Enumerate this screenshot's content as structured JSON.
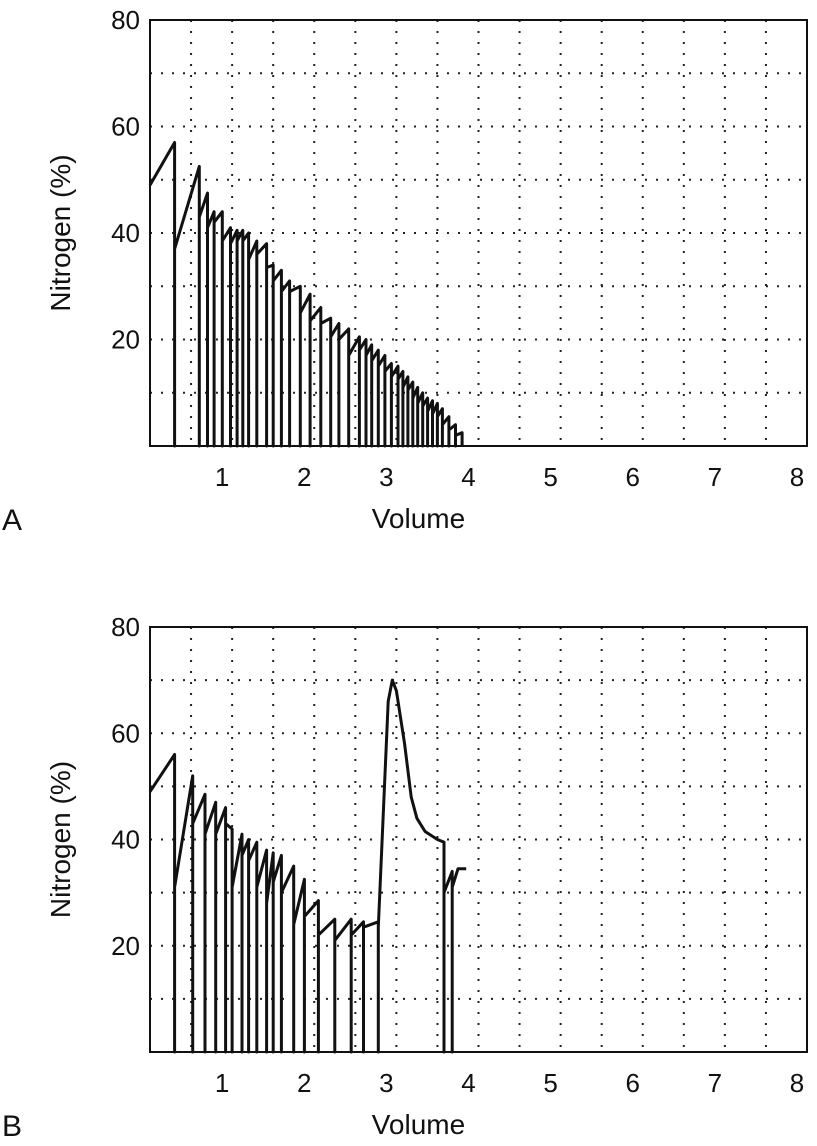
{
  "chart_data": [
    {
      "panel": "A",
      "type": "line",
      "xlabel": "Volume",
      "ylabel": "Nitrogen (%)",
      "xlim": [
        0,
        8
      ],
      "ylim": [
        0,
        80
      ],
      "x_ticks": [
        1,
        2,
        3,
        4,
        5,
        6,
        7,
        8
      ],
      "y_ticks": [
        20,
        40,
        60,
        80
      ],
      "grid": "dotted",
      "series": [
        {
          "points": [
            [
              0,
              49
            ],
            [
              0.3,
              57
            ],
            [
              0.3,
              0
            ],
            [
              0.3,
              37
            ],
            [
              0.6,
              52.5
            ],
            [
              0.6,
              0
            ],
            [
              0.6,
              43
            ],
            [
              0.7,
              47.5
            ],
            [
              0.7,
              0
            ],
            [
              0.7,
              41
            ],
            [
              0.78,
              44
            ],
            [
              0.78,
              0
            ],
            [
              0.78,
              42
            ],
            [
              0.88,
              44
            ],
            [
              0.88,
              0
            ],
            [
              0.88,
              38.5
            ],
            [
              0.98,
              41
            ],
            [
              0.98,
              0
            ],
            [
              0.98,
              38
            ],
            [
              1.06,
              40.5
            ],
            [
              1.06,
              0
            ],
            [
              1.06,
              38.5
            ],
            [
              1.13,
              40.5
            ],
            [
              1.13,
              0
            ],
            [
              1.13,
              38.5
            ],
            [
              1.2,
              40
            ],
            [
              1.2,
              0
            ],
            [
              1.2,
              35
            ],
            [
              1.3,
              38.5
            ],
            [
              1.3,
              0
            ],
            [
              1.3,
              36
            ],
            [
              1.42,
              38
            ],
            [
              1.42,
              0
            ],
            [
              1.42,
              33.5
            ],
            [
              1.5,
              34
            ],
            [
              1.5,
              0
            ],
            [
              1.5,
              31
            ],
            [
              1.6,
              33
            ],
            [
              1.6,
              0
            ],
            [
              1.6,
              29
            ],
            [
              1.7,
              31
            ],
            [
              1.7,
              0
            ],
            [
              1.7,
              29
            ],
            [
              1.83,
              30
            ],
            [
              1.83,
              0
            ],
            [
              1.83,
              25
            ],
            [
              1.95,
              28.5
            ],
            [
              1.95,
              0
            ],
            [
              1.95,
              23.5
            ],
            [
              2.08,
              26
            ],
            [
              2.08,
              0
            ],
            [
              2.08,
              23
            ],
            [
              2.2,
              24
            ],
            [
              2.2,
              0
            ],
            [
              2.2,
              20.5
            ],
            [
              2.3,
              23
            ],
            [
              2.3,
              0
            ],
            [
              2.3,
              20
            ],
            [
              2.42,
              22
            ],
            [
              2.42,
              0
            ],
            [
              2.42,
              17
            ],
            [
              2.55,
              20.5
            ],
            [
              2.55,
              0
            ],
            [
              2.55,
              18
            ],
            [
              2.63,
              20
            ],
            [
              2.63,
              0
            ],
            [
              2.63,
              17
            ],
            [
              2.7,
              19
            ],
            [
              2.7,
              0
            ],
            [
              2.7,
              16
            ],
            [
              2.78,
              18
            ],
            [
              2.78,
              0
            ],
            [
              2.78,
              15
            ],
            [
              2.86,
              17
            ],
            [
              2.86,
              0
            ],
            [
              2.86,
              14
            ],
            [
              2.94,
              15.5
            ],
            [
              2.94,
              0
            ],
            [
              2.94,
              13
            ],
            [
              3.02,
              15
            ],
            [
              3.02,
              0
            ],
            [
              3.02,
              12.5
            ],
            [
              3.08,
              14
            ],
            [
              3.08,
              0
            ],
            [
              3.08,
              11
            ],
            [
              3.14,
              13
            ],
            [
              3.14,
              0
            ],
            [
              3.14,
              10.5
            ],
            [
              3.2,
              12
            ],
            [
              3.2,
              0
            ],
            [
              3.2,
              9
            ],
            [
              3.26,
              11
            ],
            [
              3.26,
              0
            ],
            [
              3.26,
              8
            ],
            [
              3.32,
              10
            ],
            [
              3.32,
              0
            ],
            [
              3.32,
              7.5
            ],
            [
              3.38,
              9
            ],
            [
              3.38,
              0
            ],
            [
              3.38,
              6.5
            ],
            [
              3.44,
              8.5
            ],
            [
              3.44,
              0
            ],
            [
              3.44,
              6
            ],
            [
              3.5,
              8
            ],
            [
              3.5,
              0
            ],
            [
              3.5,
              5.5
            ],
            [
              3.56,
              7
            ],
            [
              3.56,
              0
            ],
            [
              3.56,
              4
            ],
            [
              3.64,
              5.5
            ],
            [
              3.64,
              0
            ],
            [
              3.64,
              3
            ],
            [
              3.72,
              4
            ],
            [
              3.72,
              0
            ],
            [
              3.72,
              2
            ],
            [
              3.8,
              2.5
            ],
            [
              3.8,
              0
            ]
          ]
        }
      ]
    },
    {
      "panel": "B",
      "type": "line",
      "xlabel": "Volume",
      "ylabel": "Nitrogen (%)",
      "xlim": [
        0,
        8
      ],
      "ylim": [
        0,
        80
      ],
      "x_ticks": [
        1,
        2,
        3,
        4,
        5,
        6,
        7,
        8
      ],
      "y_ticks": [
        20,
        40,
        60,
        80
      ],
      "grid": "dotted",
      "series": [
        {
          "points": [
            [
              0,
              49
            ],
            [
              0.3,
              56
            ],
            [
              0.3,
              0
            ],
            [
              0.3,
              31
            ],
            [
              0.52,
              52
            ],
            [
              0.52,
              0
            ],
            [
              0.52,
              43
            ],
            [
              0.67,
              48.5
            ],
            [
              0.67,
              0
            ],
            [
              0.67,
              41
            ],
            [
              0.8,
              47
            ],
            [
              0.8,
              0
            ],
            [
              0.8,
              41
            ],
            [
              0.92,
              46
            ],
            [
              0.92,
              0
            ],
            [
              0.92,
              43
            ],
            [
              1.0,
              42
            ],
            [
              1.0,
              0
            ],
            [
              1.0,
              31
            ],
            [
              1.12,
              41
            ],
            [
              1.12,
              0
            ],
            [
              1.12,
              37
            ],
            [
              1.2,
              40
            ],
            [
              1.2,
              0
            ],
            [
              1.2,
              36
            ],
            [
              1.3,
              39.5
            ],
            [
              1.3,
              0
            ],
            [
              1.3,
              31
            ],
            [
              1.42,
              38
            ],
            [
              1.42,
              0
            ],
            [
              1.42,
              28
            ],
            [
              1.5,
              37.5
            ],
            [
              1.5,
              0
            ],
            [
              1.5,
              32
            ],
            [
              1.6,
              37
            ],
            [
              1.6,
              0
            ],
            [
              1.6,
              30
            ],
            [
              1.75,
              35
            ],
            [
              1.75,
              0
            ],
            [
              1.75,
              24
            ],
            [
              1.88,
              32.5
            ],
            [
              1.88,
              0
            ],
            [
              1.88,
              25.5
            ],
            [
              2.05,
              28.5
            ],
            [
              2.05,
              0
            ],
            [
              2.05,
              22
            ],
            [
              2.25,
              25
            ],
            [
              2.25,
              0
            ],
            [
              2.25,
              21
            ],
            [
              2.45,
              25
            ],
            [
              2.45,
              0
            ],
            [
              2.45,
              22
            ],
            [
              2.6,
              24.5
            ],
            [
              2.6,
              0
            ],
            [
              2.6,
              23.5
            ],
            [
              2.78,
              24.5
            ],
            [
              2.78,
              0
            ],
            [
              2.78,
              23.5
            ],
            [
              2.9,
              66
            ],
            [
              2.95,
              70
            ],
            [
              3.0,
              68
            ],
            [
              3.1,
              58
            ],
            [
              3.18,
              48
            ],
            [
              3.25,
              44
            ],
            [
              3.35,
              41.5
            ],
            [
              3.5,
              40
            ],
            [
              3.58,
              39.5
            ],
            [
              3.58,
              0
            ],
            [
              3.58,
              30
            ],
            [
              3.68,
              34
            ],
            [
              3.68,
              0
            ],
            [
              3.68,
              31
            ],
            [
              3.75,
              34.5
            ],
            [
              3.85,
              34.5
            ]
          ]
        }
      ]
    }
  ]
}
